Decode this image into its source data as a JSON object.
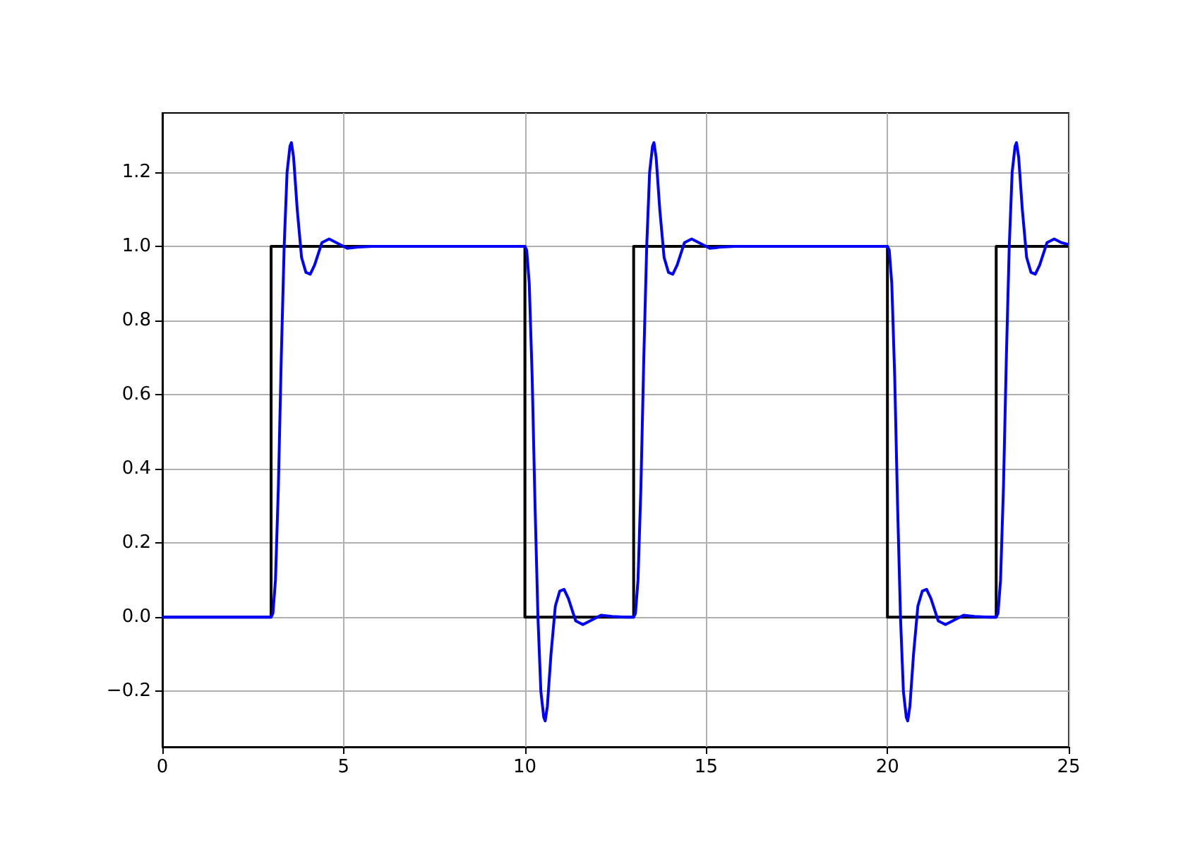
{
  "chart_data": {
    "type": "line",
    "xlim": [
      0,
      25
    ],
    "ylim": [
      -0.35,
      1.36
    ],
    "xticks": [
      0,
      5,
      10,
      15,
      20,
      25
    ],
    "yticks": [
      {
        "value": -0.2,
        "label": "−0.2"
      },
      {
        "value": 0,
        "label": "0.0"
      },
      {
        "value": 0.2,
        "label": "0.2"
      },
      {
        "value": 0.4,
        "label": "0.4"
      },
      {
        "value": 0.6,
        "label": "0.6"
      },
      {
        "value": 0.8,
        "label": "0.8"
      },
      {
        "value": 1,
        "label": "1.0"
      },
      {
        "value": 1.2,
        "label": "1.2"
      }
    ],
    "grid": true,
    "marker": "none",
    "line_style": "solid",
    "series": [
      {
        "type": "step",
        "color": "#000000",
        "x": [
          0,
          3,
          10,
          13,
          20,
          23,
          25
        ],
        "values": [
          0,
          1,
          0,
          1,
          0,
          1,
          1
        ]
      },
      {
        "color": "#0000ff",
        "x": [
          0,
          3,
          3.05,
          3.12,
          3.2,
          3.28,
          3.36,
          3.44,
          3.52,
          3.56,
          3.62,
          3.72,
          3.84,
          3.96,
          4.08,
          4.2,
          4.4,
          4.6,
          4.8,
          5.1,
          5.4,
          5.8,
          10,
          10.05,
          10.12,
          10.2,
          10.28,
          10.36,
          10.44,
          10.52,
          10.56,
          10.62,
          10.72,
          10.84,
          10.96,
          11.08,
          11.2,
          11.4,
          11.6,
          11.8,
          12.1,
          12.4,
          12.8,
          13,
          13.05,
          13.12,
          13.2,
          13.28,
          13.36,
          13.44,
          13.52,
          13.56,
          13.62,
          13.72,
          13.84,
          13.96,
          14.08,
          14.2,
          14.4,
          14.6,
          14.8,
          15.1,
          15.4,
          15.8,
          20,
          20.05,
          20.12,
          20.2,
          20.28,
          20.36,
          20.44,
          20.52,
          20.56,
          20.62,
          20.72,
          20.84,
          20.96,
          21.08,
          21.2,
          21.4,
          21.6,
          21.8,
          22.1,
          22.4,
          22.8,
          23,
          23.05,
          23.12,
          23.2,
          23.28,
          23.36,
          23.44,
          23.52,
          23.56,
          23.62,
          23.72,
          23.84,
          23.96,
          24.08,
          24.2,
          24.4,
          24.6,
          24.8,
          25
        ],
        "values": [
          0,
          0,
          0.01,
          0.1,
          0.35,
          0.7,
          1,
          1.2,
          1.27,
          1.28,
          1.24,
          1.1,
          0.97,
          0.93,
          0.925,
          0.95,
          1.01,
          1.02,
          1.01,
          0.995,
          0.998,
          1,
          1,
          0.99,
          0.9,
          0.65,
          0.3,
          0,
          -0.2,
          -0.27,
          -0.28,
          -0.24,
          -0.1,
          0.03,
          0.07,
          0.075,
          0.05,
          -0.01,
          -0.02,
          -0.01,
          0.005,
          0.002,
          0,
          0,
          0.01,
          0.1,
          0.35,
          0.7,
          1,
          1.2,
          1.27,
          1.28,
          1.24,
          1.1,
          0.97,
          0.93,
          0.925,
          0.95,
          1.01,
          1.02,
          1.01,
          0.995,
          0.998,
          1,
          1,
          0.99,
          0.9,
          0.65,
          0.3,
          0,
          -0.2,
          -0.27,
          -0.28,
          -0.24,
          -0.1,
          0.03,
          0.07,
          0.075,
          0.05,
          -0.01,
          -0.02,
          -0.01,
          0.005,
          0.002,
          0,
          0,
          0.01,
          0.1,
          0.35,
          0.7,
          1,
          1.2,
          1.27,
          1.28,
          1.24,
          1.1,
          0.97,
          0.93,
          0.925,
          0.95,
          1.01,
          1.02,
          1.01,
          1.005
        ]
      }
    ]
  }
}
